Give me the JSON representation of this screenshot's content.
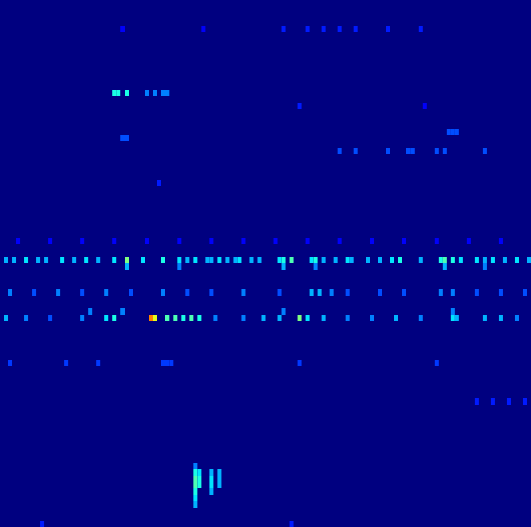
{
  "chart_data": {
    "type": "heatmap",
    "tick_labels": false,
    "xlim": [
      0,
      132
    ],
    "ylim": [
      0,
      82
    ],
    "color_range": [
      0,
      1
    ],
    "cells": [
      [
        1,
        40,
        0.3
      ],
      [
        3,
        40,
        0.3
      ],
      [
        6,
        40,
        0.35
      ],
      [
        9,
        40,
        0.3
      ],
      [
        11,
        40,
        0.3
      ],
      [
        15,
        40,
        0.35
      ],
      [
        18,
        40,
        0.3
      ],
      [
        21,
        40,
        0.35
      ],
      [
        24,
        40,
        0.3
      ],
      [
        28,
        40,
        0.35
      ],
      [
        31,
        40,
        0.5
      ],
      [
        35,
        40,
        0.35
      ],
      [
        40,
        40,
        0.4
      ],
      [
        44,
        40,
        0.35
      ],
      [
        46,
        40,
        0.3
      ],
      [
        48,
        40,
        0.35
      ],
      [
        51,
        40,
        0.3
      ],
      [
        52,
        40,
        0.3
      ],
      [
        54,
        40,
        0.35
      ],
      [
        56,
        40,
        0.3
      ],
      [
        58,
        40,
        0.3
      ],
      [
        59,
        40,
        0.35
      ],
      [
        62,
        40,
        0.3
      ],
      [
        64,
        40,
        0.3
      ],
      [
        69,
        40,
        0.35
      ],
      [
        70,
        40,
        0.4
      ],
      [
        72,
        40,
        0.45
      ],
      [
        77,
        40,
        0.35
      ],
      [
        78,
        40,
        0.4
      ],
      [
        80,
        40,
        0.3
      ],
      [
        83,
        40,
        0.3
      ],
      [
        86,
        40,
        0.35
      ],
      [
        87,
        40,
        0.3
      ],
      [
        91,
        40,
        0.3
      ],
      [
        94,
        40,
        0.3
      ],
      [
        97,
        40,
        0.35
      ],
      [
        99,
        40,
        0.4
      ],
      [
        104,
        40,
        0.3
      ],
      [
        109,
        40,
        0.4
      ],
      [
        110,
        40,
        0.45
      ],
      [
        112,
        40,
        0.4
      ],
      [
        114,
        40,
        0.35
      ],
      [
        118,
        40,
        0.35
      ],
      [
        120,
        40,
        0.3
      ],
      [
        122,
        40,
        0.35
      ],
      [
        125,
        40,
        0.3
      ],
      [
        128,
        40,
        0.35
      ],
      [
        131,
        40,
        0.3
      ],
      [
        31,
        41,
        0.3
      ],
      [
        44,
        41,
        0.25
      ],
      [
        70,
        41,
        0.3
      ],
      [
        78,
        41,
        0.25
      ],
      [
        110,
        41,
        0.3
      ],
      [
        120,
        41,
        0.25
      ],
      [
        2,
        45,
        0.25
      ],
      [
        8,
        45,
        0.2
      ],
      [
        14,
        45,
        0.25
      ],
      [
        20,
        45,
        0.2
      ],
      [
        26,
        45,
        0.25
      ],
      [
        32,
        45,
        0.2
      ],
      [
        40,
        45,
        0.25
      ],
      [
        46,
        45,
        0.2
      ],
      [
        52,
        45,
        0.2
      ],
      [
        60,
        45,
        0.25
      ],
      [
        69,
        45,
        0.2
      ],
      [
        77,
        45,
        0.3
      ],
      [
        79,
        45,
        0.3
      ],
      [
        82,
        45,
        0.25
      ],
      [
        86,
        45,
        0.2
      ],
      [
        94,
        45,
        0.2
      ],
      [
        100,
        45,
        0.2
      ],
      [
        109,
        45,
        0.25
      ],
      [
        112,
        45,
        0.25
      ],
      [
        118,
        45,
        0.2
      ],
      [
        124,
        45,
        0.2
      ],
      [
        130,
        45,
        0.2
      ],
      [
        22,
        48,
        0.25
      ],
      [
        30,
        48,
        0.25
      ],
      [
        70,
        48,
        0.25
      ],
      [
        112,
        48,
        0.25
      ],
      [
        1,
        49,
        0.3
      ],
      [
        6,
        49,
        0.25
      ],
      [
        12,
        49,
        0.2
      ],
      [
        20,
        49,
        0.25
      ],
      [
        26,
        49,
        0.35
      ],
      [
        28,
        49,
        0.4
      ],
      [
        37,
        49,
        0.75
      ],
      [
        38,
        49,
        0.6
      ],
      [
        41,
        49,
        0.45
      ],
      [
        43,
        49,
        0.45
      ],
      [
        45,
        49,
        0.4
      ],
      [
        47,
        49,
        0.45
      ],
      [
        49,
        49,
        0.4
      ],
      [
        53,
        49,
        0.25
      ],
      [
        60,
        49,
        0.25
      ],
      [
        65,
        49,
        0.3
      ],
      [
        69,
        49,
        0.3
      ],
      [
        74,
        49,
        0.5
      ],
      [
        76,
        49,
        0.35
      ],
      [
        80,
        49,
        0.3
      ],
      [
        86,
        49,
        0.25
      ],
      [
        92,
        49,
        0.25
      ],
      [
        98,
        49,
        0.3
      ],
      [
        104,
        49,
        0.25
      ],
      [
        112,
        49,
        0.35
      ],
      [
        113,
        49,
        0.3
      ],
      [
        120,
        49,
        0.3
      ],
      [
        124,
        49,
        0.3
      ],
      [
        128,
        49,
        0.25
      ],
      [
        4,
        37,
        0.12
      ],
      [
        12,
        37,
        0.12
      ],
      [
        20,
        37,
        0.12
      ],
      [
        28,
        37,
        0.12
      ],
      [
        36,
        37,
        0.12
      ],
      [
        44,
        37,
        0.12
      ],
      [
        52,
        37,
        0.12
      ],
      [
        60,
        37,
        0.12
      ],
      [
        68,
        37,
        0.12
      ],
      [
        76,
        37,
        0.12
      ],
      [
        84,
        37,
        0.12
      ],
      [
        92,
        37,
        0.12
      ],
      [
        100,
        37,
        0.12
      ],
      [
        108,
        37,
        0.12
      ],
      [
        116,
        37,
        0.12
      ],
      [
        124,
        37,
        0.12
      ],
      [
        28,
        14,
        0.4
      ],
      [
        29,
        14,
        0.4
      ],
      [
        31,
        14,
        0.4
      ],
      [
        36,
        14,
        0.25
      ],
      [
        38,
        14,
        0.25
      ],
      [
        40,
        14,
        0.25
      ],
      [
        41,
        14,
        0.25
      ],
      [
        30,
        21,
        0.2
      ],
      [
        31,
        21,
        0.2
      ],
      [
        111,
        20,
        0.2
      ],
      [
        112,
        20,
        0.2
      ],
      [
        113,
        20,
        0.2
      ],
      [
        84,
        23,
        0.2
      ],
      [
        88,
        23,
        0.2
      ],
      [
        96,
        23,
        0.2
      ],
      [
        101,
        23,
        0.2
      ],
      [
        102,
        23,
        0.2
      ],
      [
        108,
        23,
        0.2
      ],
      [
        110,
        23,
        0.2
      ],
      [
        120,
        23,
        0.2
      ],
      [
        30,
        4,
        0.12
      ],
      [
        50,
        4,
        0.12
      ],
      [
        70,
        4,
        0.15
      ],
      [
        76,
        4,
        0.15
      ],
      [
        80,
        4,
        0.15
      ],
      [
        84,
        4,
        0.15
      ],
      [
        88,
        4,
        0.15
      ],
      [
        96,
        4,
        0.15
      ],
      [
        104,
        4,
        0.15
      ],
      [
        2,
        56,
        0.18
      ],
      [
        16,
        56,
        0.18
      ],
      [
        24,
        56,
        0.18
      ],
      [
        40,
        56,
        0.18
      ],
      [
        41,
        56,
        0.18
      ],
      [
        42,
        56,
        0.18
      ],
      [
        74,
        56,
        0.18
      ],
      [
        108,
        56,
        0.18
      ],
      [
        118,
        62,
        0.15
      ],
      [
        122,
        62,
        0.15
      ],
      [
        126,
        62,
        0.15
      ],
      [
        130,
        62,
        0.15
      ],
      [
        48,
        72,
        0.25
      ],
      [
        48,
        73,
        0.4
      ],
      [
        49,
        73,
        0.35
      ],
      [
        52,
        73,
        0.3
      ],
      [
        54,
        73,
        0.3
      ],
      [
        48,
        74,
        0.45
      ],
      [
        49,
        74,
        0.4
      ],
      [
        52,
        74,
        0.35
      ],
      [
        54,
        74,
        0.3
      ],
      [
        48,
        75,
        0.45
      ],
      [
        49,
        75,
        0.4
      ],
      [
        52,
        75,
        0.35
      ],
      [
        54,
        75,
        0.3
      ],
      [
        48,
        76,
        0.4
      ],
      [
        52,
        76,
        0.3
      ],
      [
        48,
        77,
        0.35
      ],
      [
        48,
        78,
        0.3
      ],
      [
        10,
        81,
        0.15
      ],
      [
        72,
        81,
        0.15
      ],
      [
        39,
        28,
        0.15
      ],
      [
        74,
        16,
        0.15
      ],
      [
        105,
        16,
        0.12
      ]
    ]
  }
}
